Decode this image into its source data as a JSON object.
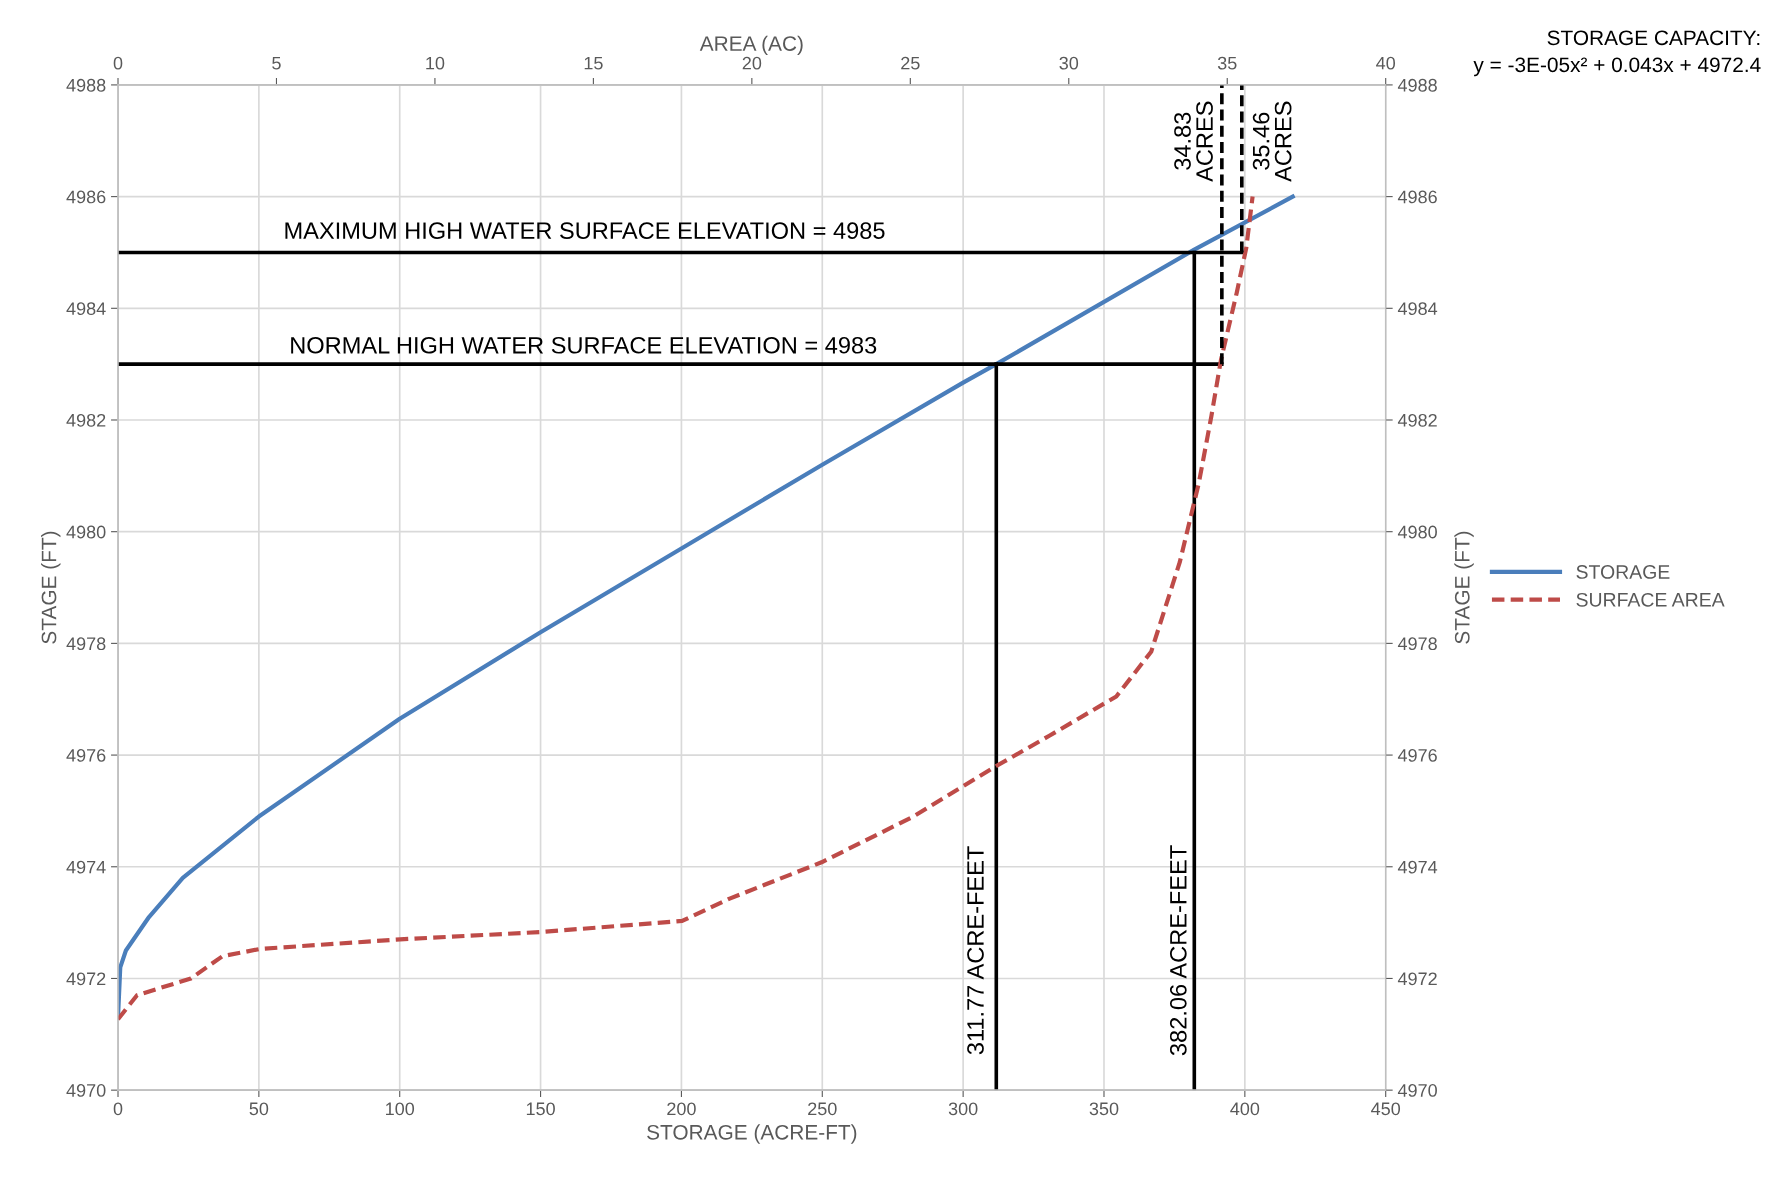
{
  "chart_data": {
    "type": "line",
    "xlabel": "STORAGE (ACRE-FT)",
    "x2label": "AREA (AC)",
    "ylabel": "STAGE (FT)",
    "y2label": "STAGE (FT)",
    "xlim": [
      0,
      450
    ],
    "xticks": [
      0,
      50,
      100,
      150,
      200,
      250,
      300,
      350,
      400,
      450
    ],
    "x2lim": [
      0,
      40
    ],
    "x2ticks": [
      0,
      5,
      10,
      15,
      20,
      25,
      30,
      35,
      40
    ],
    "ylim": [
      4970,
      4988
    ],
    "yticks": [
      4970,
      4972,
      4974,
      4976,
      4978,
      4980,
      4982,
      4984,
      4986,
      4988
    ],
    "y2lim": [
      4970,
      4988
    ],
    "y2ticks": [
      4970,
      4972,
      4974,
      4976,
      4978,
      4980,
      4982,
      4984,
      4986,
      4988
    ],
    "grid": true,
    "legend": "right",
    "marker": "none",
    "series": [
      {
        "name": "STORAGE",
        "color": "#4a7ebb",
        "line_style": "solid",
        "x": [
          0,
          0.8,
          2.8,
          11,
          23,
          50,
          100,
          150,
          200,
          250,
          300,
          311.77,
          382.06,
          417
        ],
        "values": [
          4971.3,
          4972.2,
          4972.5,
          4973.1,
          4973.8,
          4974.9,
          4976.65,
          4978.2,
          4979.7,
          4981.2,
          4982.67,
          4983,
          4985.05,
          4986
        ]
      },
      {
        "name": "SURFACE AREA",
        "color": "#be4b48",
        "line_style": "dashed",
        "axis": "x2",
        "x": [
          0,
          0.6,
          2.3,
          3.3,
          4.5,
          8.9,
          13.3,
          17.8,
          19.3,
          22.2,
          25.1,
          27.7,
          29.4,
          31.5,
          32.6,
          33.5,
          34.1,
          34.5,
          34.8,
          35.3,
          35.6,
          35.8
        ],
        "values": [
          4971.27,
          4971.7,
          4972.0,
          4972.4,
          4972.53,
          4972.7,
          4972.83,
          4973.03,
          4973.43,
          4974.08,
          4974.9,
          4975.8,
          4976.35,
          4977.05,
          4977.85,
          4979.45,
          4980.86,
          4982.07,
          4983.07,
          4984.28,
          4985.08,
          4986.0
        ]
      },
      {
        "color": "#000000",
        "line_style": "solid",
        "x": [
          0,
          398.9
        ],
        "values": [
          4985,
          4985
        ]
      },
      {
        "color": "#000000",
        "line_style": "solid",
        "x": [
          0,
          391.8
        ],
        "values": [
          4983,
          4983
        ]
      },
      {
        "color": "#000000",
        "line_style": "solid",
        "x": [
          311.77,
          311.77
        ],
        "values": [
          4970,
          4983
        ]
      },
      {
        "color": "#000000",
        "line_style": "solid",
        "x": [
          382.06,
          382.06
        ],
        "values": [
          4970,
          4985
        ]
      },
      {
        "color": "#000000",
        "line_style": "dashed",
        "axis": "x2",
        "x": [
          34.83,
          34.83
        ],
        "values": [
          4983,
          4988
        ]
      },
      {
        "color": "#000000",
        "line_style": "dashed",
        "axis": "x2",
        "x": [
          35.46,
          35.46
        ],
        "values": [
          4985,
          4988
        ]
      }
    ],
    "annotations": [
      "MAXIMUM HIGH WATER SURFACE ELEVATION = 4985",
      "NORMAL HIGH WATER SURFACE ELEVATION = 4983",
      "311.77 ACRE-FEET",
      "382.06 ACRE-FEET",
      "34.83\nACRES",
      "35.46\nACRES",
      "STORAGE CAPACITY:\ny = -3E-05x² + 0.043x + 4972.4"
    ]
  }
}
